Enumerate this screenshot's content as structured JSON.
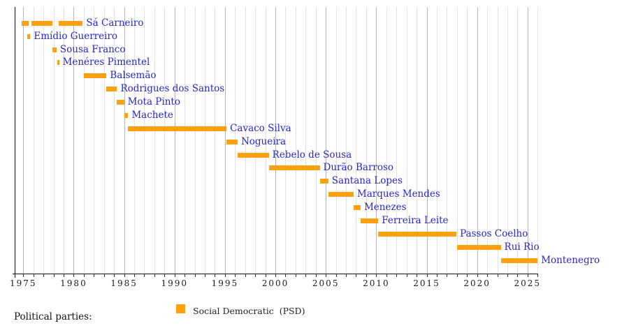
{
  "chart_data": {
    "type": "timeline",
    "title": "",
    "description": "Timeline of Social Democratic Party (PSD) leaders shown as horizontal orange bars per leader",
    "x_axis": {
      "unit": "year",
      "min": 1974,
      "max": 2026,
      "labeled_ticks": [
        1975,
        1980,
        1985,
        1990,
        1995,
        2000,
        2005,
        2010,
        2015,
        2020,
        2025
      ],
      "minor_tick_step": 1,
      "grid": true
    },
    "legend_position": "bottom",
    "rows": [
      {
        "name": "Sá Carneiro",
        "terms": [
          [
            1974.85,
            1975.55
          ],
          [
            1975.8,
            1977.9
          ],
          [
            1978.5,
            1980.9
          ]
        ]
      },
      {
        "name": "Emídio Guerreiro",
        "terms": [
          [
            1975.4,
            1975.7
          ]
        ]
      },
      {
        "name": "Sousa Franco",
        "terms": [
          [
            1977.9,
            1978.3
          ]
        ]
      },
      {
        "name": "Menéres Pimentel",
        "terms": [
          [
            1978.35,
            1978.55
          ]
        ]
      },
      {
        "name": "Balsemão",
        "terms": [
          [
            1981.0,
            1983.25
          ]
        ]
      },
      {
        "name": "Rodrigues dos Santos",
        "terms": [
          [
            1983.25,
            1984.3
          ]
        ]
      },
      {
        "name": "Mota Pinto",
        "terms": [
          [
            1984.3,
            1985.0
          ]
        ]
      },
      {
        "name": "Machete",
        "terms": [
          [
            1985.0,
            1985.4
          ]
        ]
      },
      {
        "name": "Cavaco Silva",
        "terms": [
          [
            1985.4,
            1995.15
          ]
        ]
      },
      {
        "name": "Nogueira",
        "terms": [
          [
            1995.15,
            1996.25
          ]
        ]
      },
      {
        "name": "Rebelo de Sousa",
        "terms": [
          [
            1996.25,
            1999.35
          ]
        ]
      },
      {
        "name": "Durão Barroso",
        "terms": [
          [
            1999.35,
            2004.4
          ]
        ]
      },
      {
        "name": "Santana Lopes",
        "terms": [
          [
            2004.4,
            2005.25
          ]
        ]
      },
      {
        "name": "Marques Mendes",
        "terms": [
          [
            2005.25,
            2007.75
          ]
        ]
      },
      {
        "name": "Menezes",
        "terms": [
          [
            2007.75,
            2008.45
          ]
        ]
      },
      {
        "name": "Ferreira Leite",
        "terms": [
          [
            2008.45,
            2010.2
          ]
        ]
      },
      {
        "name": "Passos Coelho",
        "terms": [
          [
            2010.2,
            2017.95
          ]
        ]
      },
      {
        "name": "Rui Rio",
        "terms": [
          [
            2018.0,
            2022.35
          ]
        ]
      },
      {
        "name": "Montenegro",
        "terms": [
          [
            2022.35,
            2026.0
          ]
        ]
      }
    ]
  },
  "legend": {
    "heading": "Political parties:",
    "items": [
      {
        "label": "Social Democratic  (PSD)",
        "color": "#FFA011"
      }
    ]
  },
  "colors": {
    "bar": "#FFA011",
    "leader_link": "#2828C8",
    "grid_minor": "#E2E2E2",
    "grid_major": "#B6B6B6",
    "axis": "#111111"
  }
}
